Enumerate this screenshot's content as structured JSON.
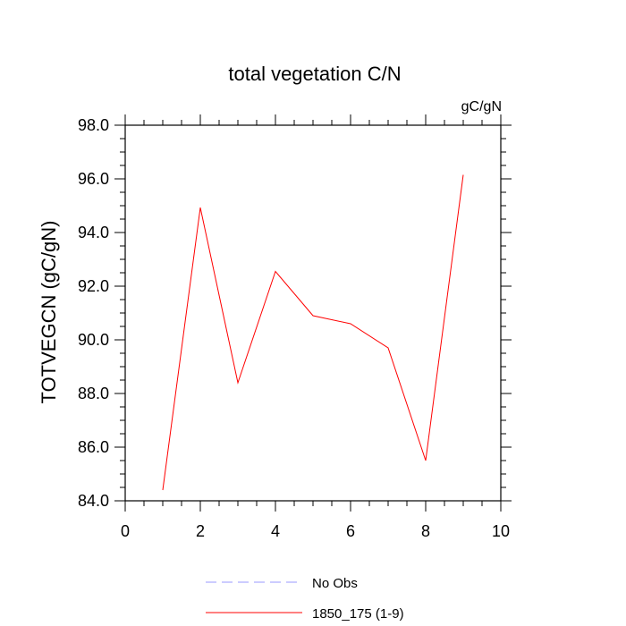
{
  "chart_data": {
    "type": "line",
    "title": "total vegetation C/N",
    "units_label": "gC/gN",
    "ylabel": "TOTVEGCN  (gC/gN)",
    "xlabel": "",
    "xlim": [
      0,
      10
    ],
    "ylim": [
      84,
      98
    ],
    "x_ticks": [
      0,
      2,
      4,
      6,
      8,
      10
    ],
    "x_tick_labels": [
      "0",
      "2",
      "4",
      "6",
      "8",
      "10"
    ],
    "y_ticks": [
      84,
      86,
      88,
      90,
      92,
      94,
      96,
      98
    ],
    "y_tick_labels": [
      "84.0",
      "86.0",
      "88.0",
      "90.0",
      "92.0",
      "94.0",
      "96.0",
      "98.0"
    ],
    "grid": false,
    "legend_position": "bottom",
    "series": [
      {
        "name": "1850_175 (1-9)",
        "color": "#ff0000",
        "dash": "solid",
        "x": [
          1,
          2,
          3,
          4,
          5,
          6,
          7,
          8,
          9
        ],
        "y": [
          84.4,
          94.93,
          88.4,
          92.55,
          90.9,
          90.6,
          89.7,
          85.5,
          96.15
        ]
      }
    ],
    "legend": [
      {
        "label": "No Obs",
        "color": "#9999ff",
        "dash": "dashed"
      },
      {
        "label": "1850_175 (1-9)",
        "color": "#ff0000",
        "dash": "solid"
      }
    ]
  }
}
